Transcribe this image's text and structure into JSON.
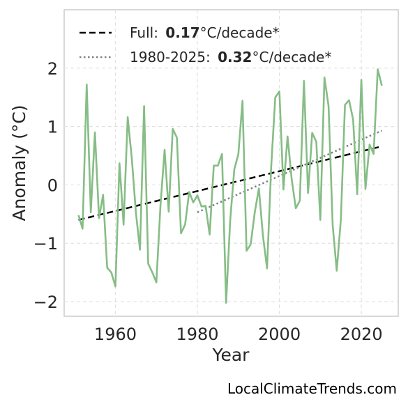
{
  "chart_data": {
    "type": "line",
    "xlabel": "Year",
    "ylabel": "Anomaly (°C)",
    "xlim": [
      1947.5,
      2029
    ],
    "ylim": [
      -2.25,
      3.0
    ],
    "xticks": [
      1960,
      1980,
      2000,
      2020
    ],
    "yticks": [
      -2,
      -1,
      0,
      1,
      2
    ],
    "ytick_labels": [
      "−2",
      "−1",
      "0",
      "1",
      "2"
    ],
    "grid": true,
    "legend_position": "top-left",
    "series": [
      {
        "kind": "data",
        "color": "#86bd86",
        "x": [
          1951,
          1952,
          1953,
          1954,
          1955,
          1956,
          1957,
          1958,
          1959,
          1960,
          1961,
          1962,
          1963,
          1964,
          1965,
          1966,
          1967,
          1968,
          1969,
          1970,
          1971,
          1972,
          1973,
          1974,
          1975,
          1976,
          1977,
          1978,
          1979,
          1980,
          1981,
          1982,
          1983,
          1984,
          1985,
          1986,
          1987,
          1988,
          1989,
          1990,
          1991,
          1992,
          1993,
          1994,
          1995,
          1996,
          1997,
          1998,
          1999,
          2000,
          2001,
          2002,
          2003,
          2004,
          2005,
          2006,
          2007,
          2008,
          2009,
          2010,
          2011,
          2012,
          2013,
          2014,
          2015,
          2016,
          2017,
          2018,
          2019,
          2020,
          2021,
          2022,
          2023,
          2024,
          2025
        ],
        "y": [
          -0.52,
          -0.75,
          1.72,
          -0.47,
          0.9,
          -0.57,
          -0.17,
          -1.42,
          -1.5,
          -1.74,
          0.37,
          -0.68,
          1.16,
          0.45,
          -0.48,
          -1.11,
          1.35,
          -1.35,
          -1.5,
          -1.67,
          -0.35,
          0.6,
          -0.46,
          0.96,
          0.81,
          -0.83,
          -0.68,
          -0.12,
          -0.3,
          -0.18,
          -0.37,
          -0.36,
          -0.85,
          0.33,
          0.33,
          0.53,
          -2.02,
          -0.62,
          0.26,
          0.53,
          1.44,
          -1.13,
          -1.02,
          -0.47,
          -0.06,
          -0.87,
          -1.43,
          0.3,
          1.5,
          1.6,
          -0.08,
          0.83,
          0.1,
          -0.4,
          -0.27,
          1.78,
          -0.14,
          0.89,
          0.74,
          -0.6,
          1.84,
          1.35,
          -0.69,
          -1.47,
          -0.6,
          1.37,
          1.45,
          1.12,
          -0.16,
          1.8,
          -0.07,
          0.69,
          0.53,
          1.98,
          1.7
        ]
      },
      {
        "kind": "trend",
        "name": "Full:",
        "rate": "0.17",
        "unit": "°C/decade*",
        "color": "#000000",
        "dash": "dashed",
        "x": [
          1951,
          2025
        ],
        "y": [
          -0.6,
          0.66
        ]
      },
      {
        "kind": "trend",
        "name": "1980-2025:",
        "rate": "0.32",
        "unit": "°C/decade*",
        "color": "#808080",
        "dash": "dotted",
        "x": [
          1980,
          2025
        ],
        "y": [
          -0.47,
          0.93
        ]
      }
    ]
  },
  "credit": "LocalClimateTrends.com"
}
